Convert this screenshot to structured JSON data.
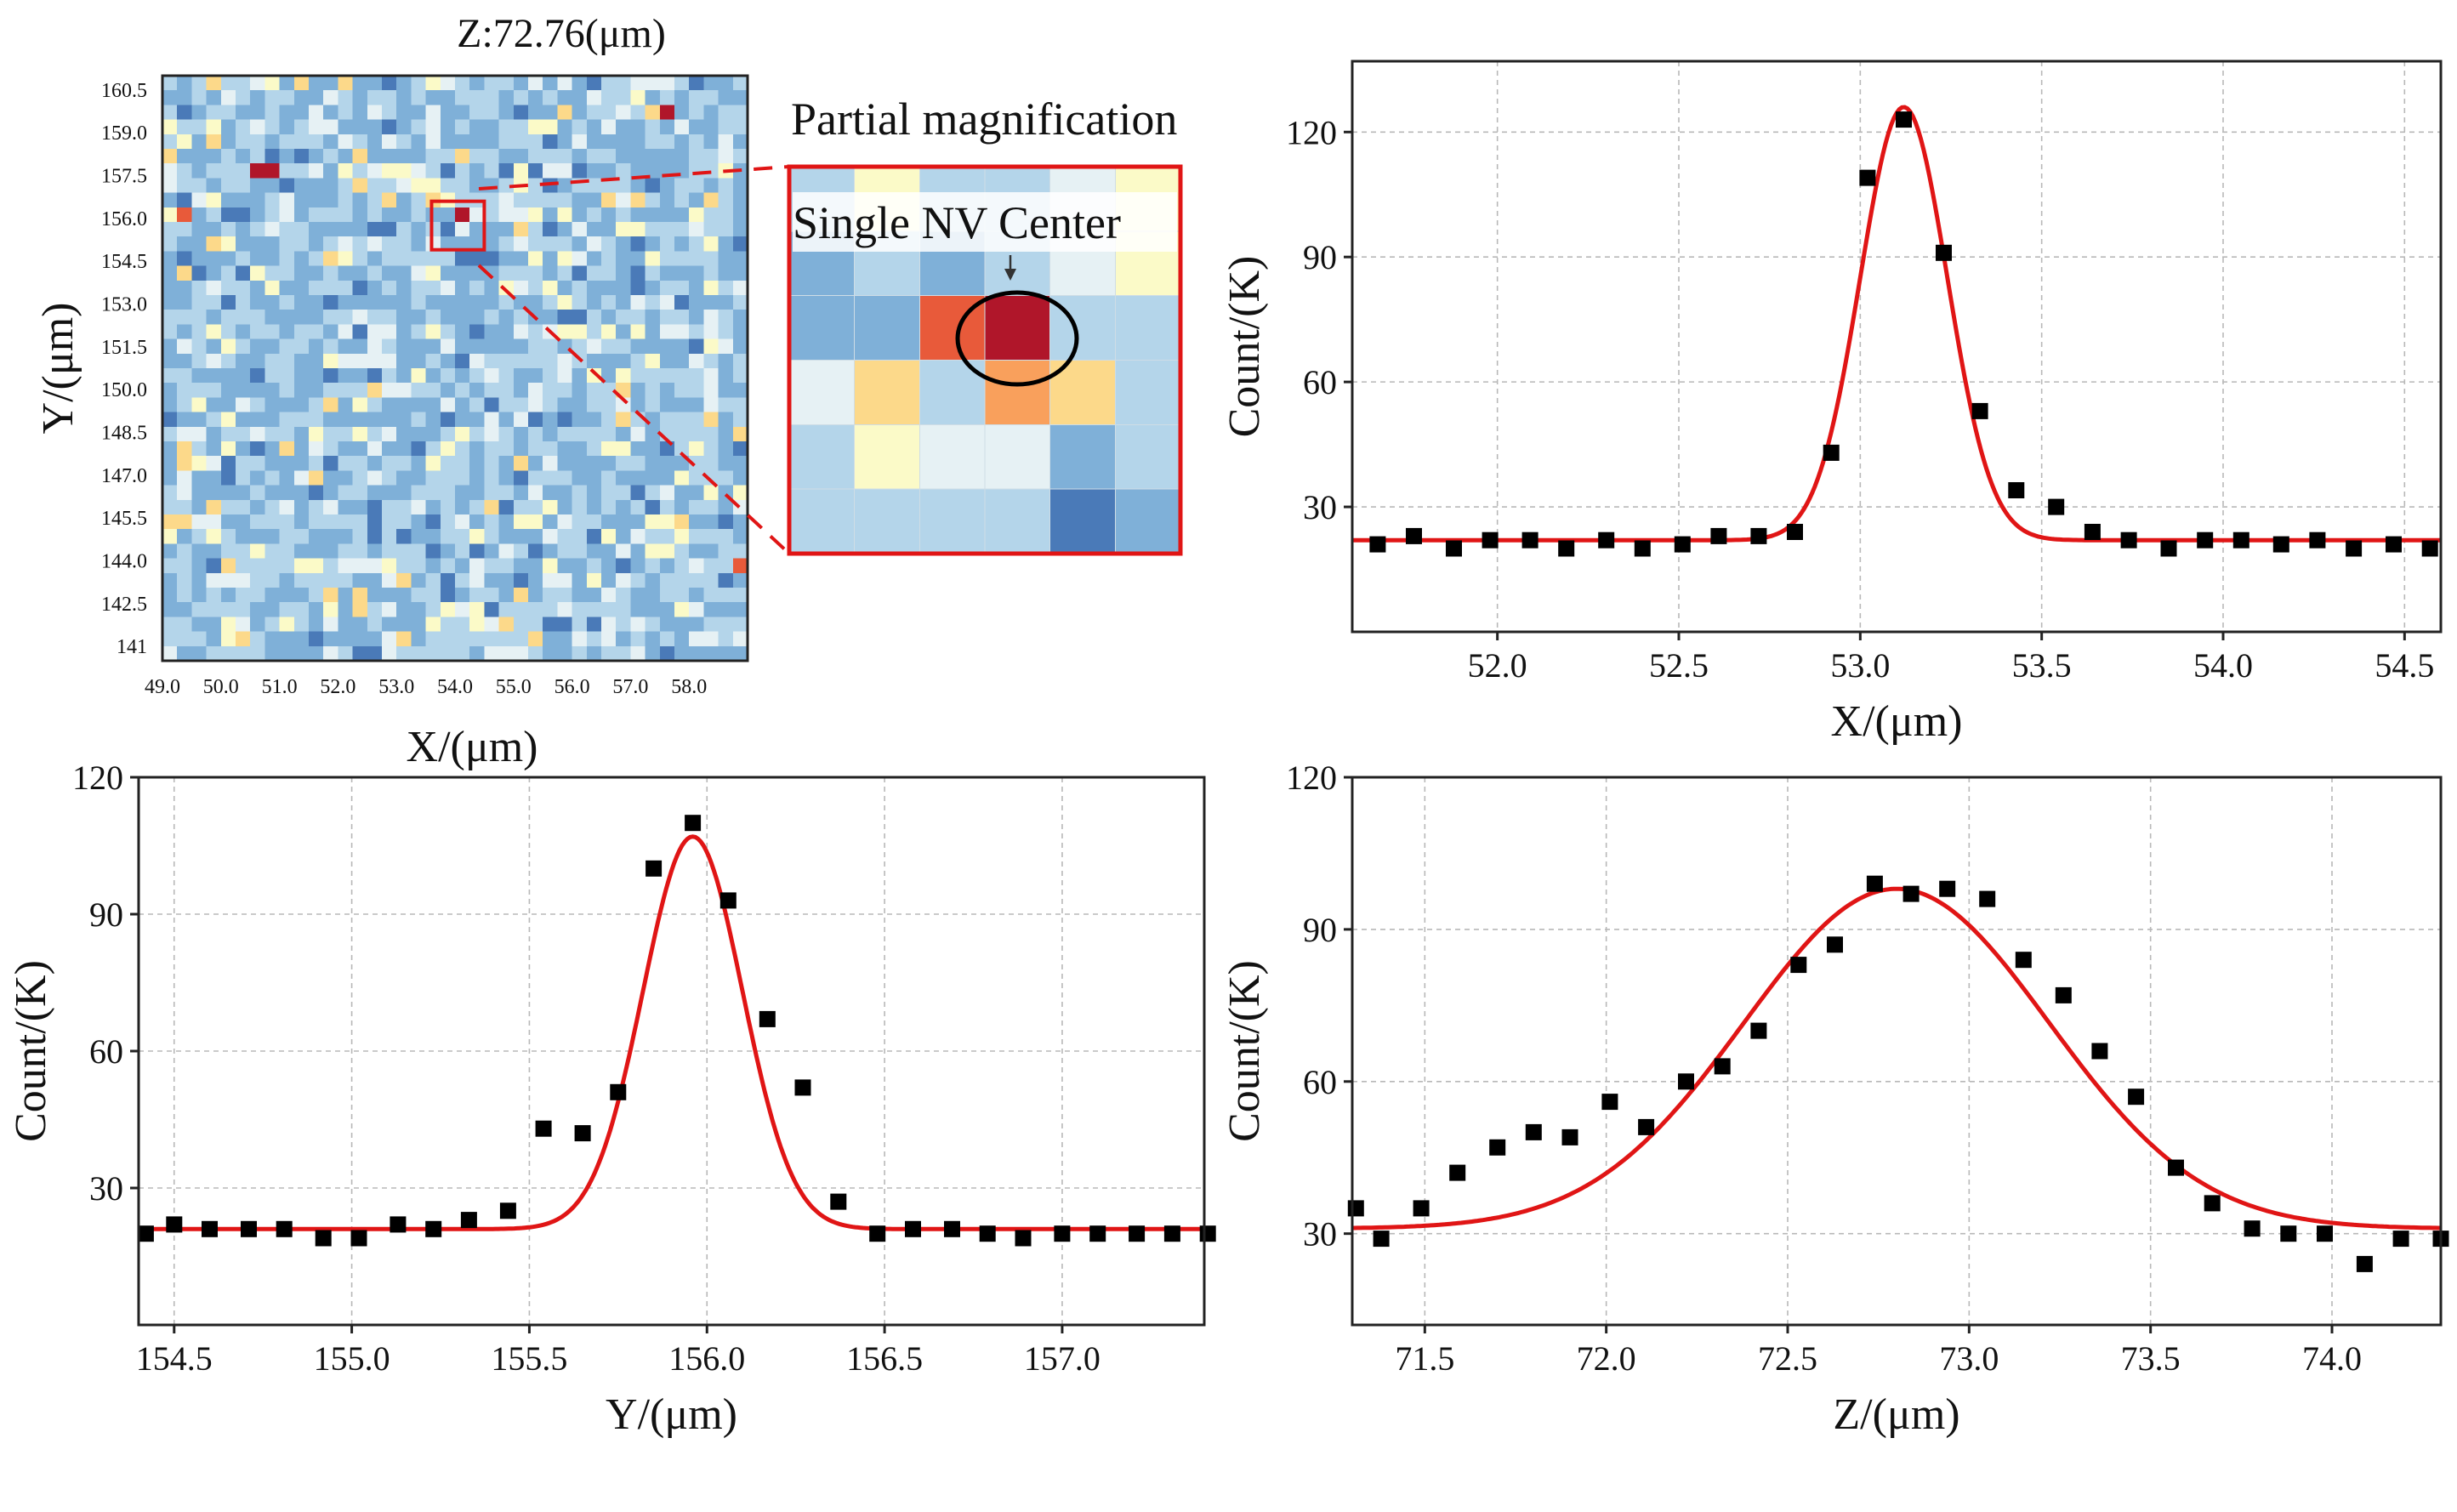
{
  "figure": {
    "heatmap_title": "Z:72.76(μm)",
    "magnification_label": "Partial magnification",
    "nv_center_label": "Single NV Center"
  },
  "chart_data": [
    {
      "type": "heatmap",
      "title": "Z:72.76(μm)",
      "xlabel": "X/(μm)",
      "ylabel": "Y/(μm)",
      "x_ticks": [
        "49.0",
        "50.0",
        "51.0",
        "52.0",
        "53.0",
        "54.0",
        "55.0",
        "56.0",
        "57.0",
        "58.0"
      ],
      "y_ticks": [
        "160.5",
        "159.0",
        "157.5",
        "156.0",
        "154.5",
        "153.0",
        "151.5",
        "150.0",
        "148.5",
        "147.0",
        "145.5",
        "144.0",
        "142.5",
        "141"
      ],
      "xlim": [
        49.0,
        59.0
      ],
      "ylim": [
        140.5,
        161.0
      ],
      "grid_cols": 40,
      "grid_rows": 40,
      "colormap": [
        "#4a7ab8",
        "#7fb0d8",
        "#b4d5ea",
        "#e6f1f4",
        "#fbfac8",
        "#fcd98a",
        "#f9a05c",
        "#e85a3a",
        "#b0162a"
      ],
      "highlight_region": {
        "x": [
          53.6,
          54.5
        ],
        "y": [
          154.9,
          156.6
        ]
      },
      "hot_pixels": [
        {
          "x": 50.7,
          "y": 157.5,
          "v": 1.0
        },
        {
          "x": 50.9,
          "y": 157.5,
          "v": 1.0
        },
        {
          "x": 49.3,
          "y": 156.0,
          "v": 0.9
        },
        {
          "x": 54.1,
          "y": 156.0,
          "v": 1.0
        },
        {
          "x": 57.6,
          "y": 159.6,
          "v": 0.95
        },
        {
          "x": 58.8,
          "y": 144.0,
          "v": 0.9
        },
        {
          "x": 49.1,
          "y": 148.8,
          "v": 0.05
        }
      ]
    },
    {
      "type": "heatmap",
      "title": "Partial magnification",
      "annotation": "Single NV Center",
      "grid": [
        [
          2,
          4,
          2,
          2,
          3,
          4
        ],
        [
          1,
          2,
          1,
          2,
          3,
          4
        ],
        [
          1,
          1,
          7,
          8,
          2,
          2
        ],
        [
          3,
          5,
          2,
          6,
          5,
          2
        ],
        [
          2,
          4,
          3,
          3,
          1,
          2
        ],
        [
          2,
          2,
          2,
          2,
          0,
          1
        ]
      ],
      "highlight_cell": [
        2,
        3
      ]
    },
    {
      "type": "scatter",
      "xlabel": "X/(μm)",
      "ylabel": "Count/(K)",
      "xlim": [
        51.6,
        54.6
      ],
      "ylim": [
        0,
        137
      ],
      "x_ticks": [
        52.0,
        52.5,
        53.0,
        53.5,
        54.0,
        54.5
      ],
      "x_tick_labels": [
        "52.0",
        "52.5",
        "53.0",
        "53.5",
        "54.0",
        "54.5"
      ],
      "y_ticks": [
        30,
        60,
        90,
        120
      ],
      "y_tick_labels": [
        "30",
        "60",
        "90",
        "120"
      ],
      "grid": true,
      "series": [
        {
          "name": "data",
          "kind": "points",
          "x": [
            51.67,
            51.77,
            51.88,
            51.98,
            52.09,
            52.19,
            52.3,
            52.4,
            52.51,
            52.61,
            52.72,
            52.82,
            52.92,
            53.02,
            53.12,
            53.23,
            53.33,
            53.43,
            53.54,
            53.64,
            53.74,
            53.85,
            53.95,
            54.05,
            54.16,
            54.26,
            54.36,
            54.47,
            54.57
          ],
          "y": [
            21,
            23,
            20,
            22,
            22,
            20,
            22,
            20,
            21,
            23,
            23,
            24,
            43,
            109,
            123,
            91,
            53,
            34,
            30,
            24,
            22,
            20,
            22,
            22,
            21,
            22,
            20,
            21,
            20
          ]
        },
        {
          "name": "Gaussian fit",
          "kind": "curve",
          "baseline": 22,
          "amplitude": 104,
          "center": 53.12,
          "sigma": 0.12
        }
      ]
    },
    {
      "type": "scatter",
      "xlabel": "Y/(μm)",
      "ylabel": "Count/(K)",
      "xlim": [
        154.4,
        157.4
      ],
      "ylim": [
        0,
        120
      ],
      "x_ticks": [
        154.5,
        155.0,
        155.5,
        156.0,
        156.5,
        157.0
      ],
      "x_tick_labels": [
        "154.5",
        "155.0",
        "155.5",
        "156.0",
        "156.5",
        "157.0"
      ],
      "y_ticks": [
        30,
        60,
        90,
        120
      ],
      "y_tick_labels": [
        "30",
        "60",
        "90",
        "120"
      ],
      "grid": true,
      "series": [
        {
          "name": "data",
          "kind": "points",
          "x": [
            154.42,
            154.5,
            154.6,
            154.71,
            154.81,
            154.92,
            155.02,
            155.13,
            155.23,
            155.33,
            155.44,
            155.54,
            155.65,
            155.75,
            155.85,
            155.96,
            156.06,
            156.17,
            156.27,
            156.37,
            156.48,
            156.58,
            156.69,
            156.79,
            156.89,
            157.0,
            157.1,
            157.21,
            157.31,
            157.41
          ],
          "y": [
            20,
            22,
            21,
            21,
            21,
            19,
            19,
            22,
            21,
            23,
            25,
            43,
            42,
            51,
            100,
            110,
            93,
            67,
            52,
            27,
            20,
            21,
            21,
            20,
            19,
            20,
            20,
            20,
            20,
            20
          ]
        },
        {
          "name": "Gaussian fit",
          "kind": "curve",
          "baseline": 21,
          "amplitude": 86,
          "center": 155.96,
          "sigma": 0.14
        }
      ]
    },
    {
      "type": "scatter",
      "xlabel": "Z/(μm)",
      "ylabel": "Count/(K)",
      "xlim": [
        71.3,
        74.3
      ],
      "ylim": [
        12,
        120
      ],
      "x_ticks": [
        71.5,
        72.0,
        72.5,
        73.0,
        73.5,
        74.0
      ],
      "x_tick_labels": [
        "71.5",
        "72.0",
        "72.5",
        "73.0",
        "73.5",
        "74.0"
      ],
      "y_ticks": [
        30,
        60,
        90,
        120
      ],
      "y_tick_labels": [
        "30",
        "60",
        "90",
        "120"
      ],
      "grid": true,
      "series": [
        {
          "name": "data",
          "kind": "points",
          "x": [
            71.31,
            71.38,
            71.49,
            71.59,
            71.7,
            71.8,
            71.9,
            72.01,
            72.11,
            72.22,
            72.32,
            72.42,
            72.53,
            72.63,
            72.74,
            72.84,
            72.94,
            73.05,
            73.15,
            73.26,
            73.36,
            73.46,
            73.57,
            73.67,
            73.78,
            73.88,
            73.98,
            74.09,
            74.19,
            74.3
          ],
          "y": [
            35,
            29,
            35,
            42,
            47,
            50,
            49,
            56,
            51,
            60,
            63,
            70,
            83,
            87,
            99,
            97,
            98,
            96,
            84,
            77,
            66,
            57,
            43,
            36,
            31,
            30,
            30,
            24,
            29,
            29
          ]
        },
        {
          "name": "Gaussian fit",
          "kind": "curve",
          "baseline": 31,
          "amplitude": 67,
          "center": 72.8,
          "sigma": 0.42
        }
      ]
    }
  ]
}
